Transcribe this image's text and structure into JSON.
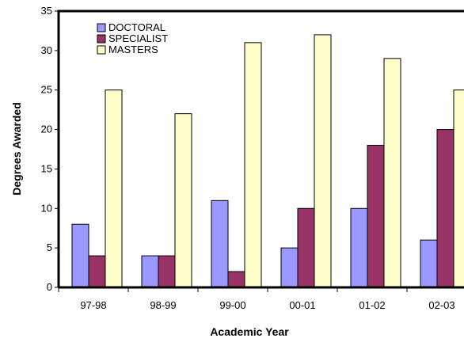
{
  "chart_data": {
    "type": "bar",
    "xlabel": "Academic Year",
    "ylabel": "Degrees Awarded",
    "categories": [
      "97-98",
      "98-99",
      "99-00",
      "00-01",
      "01-02",
      "02-03"
    ],
    "series": [
      {
        "name": "DOCTORAL",
        "color": "#9999ff",
        "values": [
          8,
          4,
          11,
          5,
          10,
          6
        ]
      },
      {
        "name": "SPECIALIST",
        "color": "#993366",
        "values": [
          4,
          4,
          2,
          10,
          18,
          20
        ]
      },
      {
        "name": "MASTERS",
        "color": "#ffffcc",
        "values": [
          25,
          22,
          31,
          32,
          29,
          25
        ]
      }
    ],
    "ylim": [
      0,
      35
    ],
    "yticks": [
      "0",
      "5",
      "10",
      "15",
      "20",
      "25",
      "30",
      "35"
    ],
    "grid": false,
    "legend_position": "top-left"
  }
}
